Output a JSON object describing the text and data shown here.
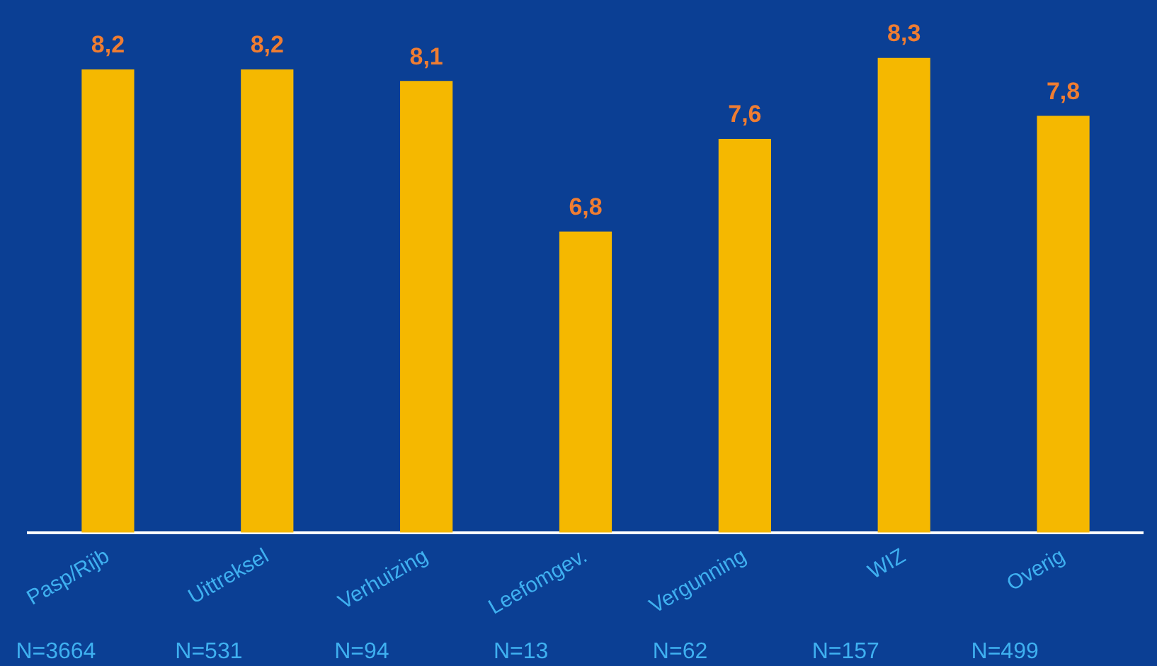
{
  "chart_data": {
    "type": "bar",
    "categories": [
      "Pasp/Rijb",
      "Uittreksel",
      "Verhuizing",
      "Leefomgev.",
      "Vergunning",
      "WIZ",
      "Overig"
    ],
    "values": [
      8.2,
      8.2,
      8.1,
      6.8,
      7.6,
      8.3,
      7.8
    ],
    "value_labels": [
      "8,2",
      "8,2",
      "8,1",
      "6,8",
      "7,6",
      "8,3",
      "7,8"
    ],
    "color": "#f5b800",
    "ylim": [
      4.2,
      8.8
    ],
    "tick_labels": "x",
    "grid": false,
    "legend": false,
    "annotations": [
      "N=3664",
      "N=531",
      "N=94",
      "N=13",
      "N=62",
      "N=157",
      "N=499"
    ]
  }
}
